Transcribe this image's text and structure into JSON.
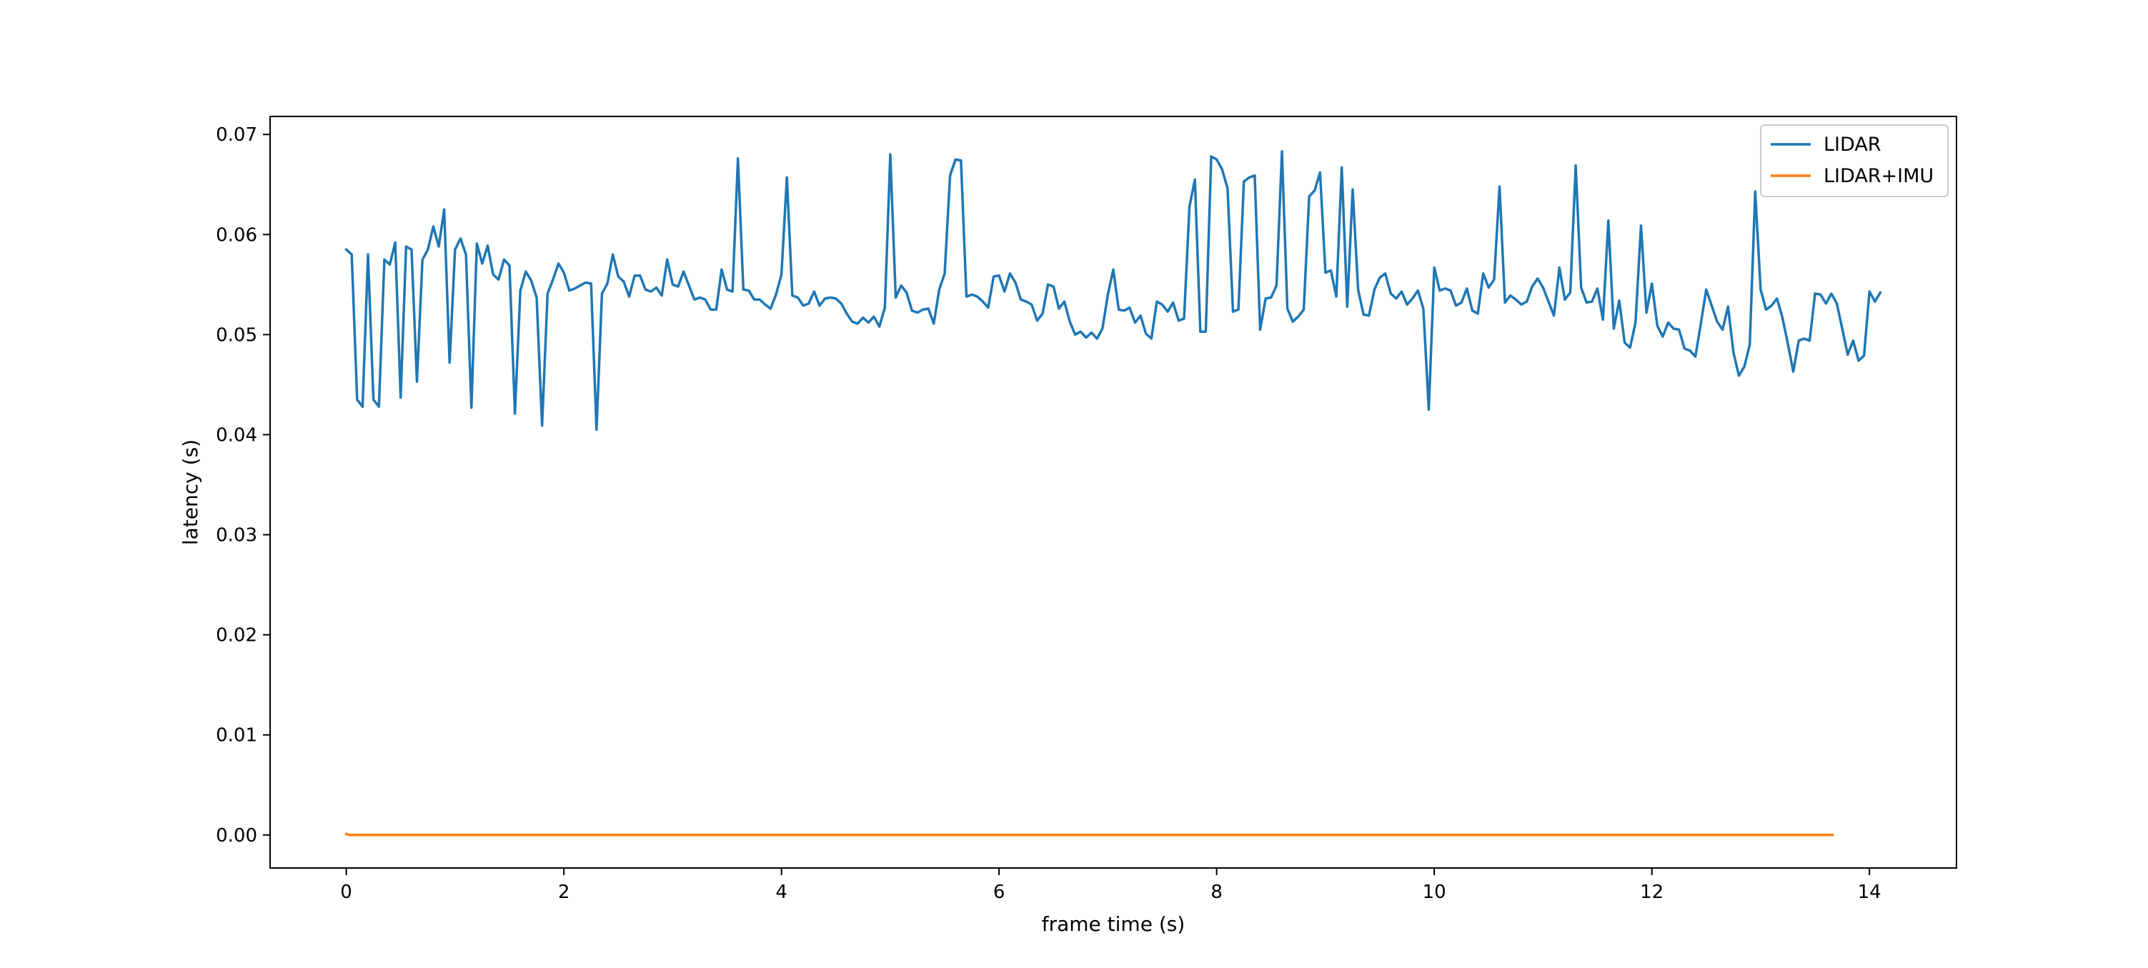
{
  "chart_data": {
    "type": "line",
    "title": "",
    "xlabel": "frame time (s)",
    "ylabel": "latency (s)",
    "xlim": [
      -0.7,
      14.8
    ],
    "ylim": [
      -0.0033,
      0.0718
    ],
    "xticks": [
      0,
      2,
      4,
      6,
      8,
      10,
      12,
      14
    ],
    "xtick_labels": [
      "0",
      "2",
      "4",
      "6",
      "8",
      "10",
      "12",
      "14"
    ],
    "yticks": [
      0.0,
      0.01,
      0.02,
      0.03,
      0.04,
      0.05,
      0.06,
      0.07
    ],
    "ytick_labels": [
      "0.00",
      "0.01",
      "0.02",
      "0.03",
      "0.04",
      "0.05",
      "0.06",
      "0.07"
    ],
    "grid": false,
    "legend_position": "top-right",
    "series": [
      {
        "name": "LIDAR",
        "color": "#1f77b4",
        "x": [
          0.0,
          0.05,
          0.1,
          0.15,
          0.2,
          0.25,
          0.3,
          0.35,
          0.4,
          0.45,
          0.5,
          0.55,
          0.6,
          0.65,
          0.7,
          0.75,
          0.8,
          0.85,
          0.9,
          0.95,
          1.0,
          1.05,
          1.1,
          1.15,
          1.2,
          1.25,
          1.3,
          1.35,
          1.4,
          1.45,
          1.5,
          1.55,
          1.6,
          1.65,
          1.7,
          1.75,
          1.8,
          1.85,
          1.9,
          1.95,
          2.0,
          2.05,
          2.1,
          2.15,
          2.2,
          2.25,
          2.3,
          2.35,
          2.4,
          2.45,
          2.5,
          2.55,
          2.6,
          2.65,
          2.7,
          2.75,
          2.8,
          2.85,
          2.9,
          2.95,
          3.0,
          3.05,
          3.1,
          3.15,
          3.2,
          3.25,
          3.3,
          3.35,
          3.4,
          3.45,
          3.5,
          3.55,
          3.6,
          3.65,
          3.7,
          3.75,
          3.8,
          3.85,
          3.9,
          3.95,
          4.0,
          4.05,
          4.1,
          4.15,
          4.2,
          4.25,
          4.3,
          4.35,
          4.4,
          4.45,
          4.5,
          4.55,
          4.6,
          4.65,
          4.7,
          4.75,
          4.8,
          4.85,
          4.9,
          4.95,
          5.0,
          5.05,
          5.1,
          5.15,
          5.2,
          5.25,
          5.3,
          5.35,
          5.4,
          5.45,
          5.5,
          5.55,
          5.6,
          5.65,
          5.7,
          5.75,
          5.8,
          5.85,
          5.9,
          5.95,
          6.0,
          6.05,
          6.1,
          6.15,
          6.2,
          6.25,
          6.3,
          6.35,
          6.4,
          6.45,
          6.5,
          6.55,
          6.6,
          6.65,
          6.7,
          6.75,
          6.8,
          6.85,
          6.9,
          6.95,
          7.0,
          7.05,
          7.1,
          7.15,
          7.2,
          7.25,
          7.3,
          7.35,
          7.4,
          7.45,
          7.5,
          7.55,
          7.6,
          7.65,
          7.7,
          7.75,
          7.8,
          7.85,
          7.9,
          7.95,
          8.0,
          8.05,
          8.1,
          8.15,
          8.2,
          8.25,
          8.3,
          8.35,
          8.4,
          8.45,
          8.5,
          8.55,
          8.6,
          8.65,
          8.7,
          8.75,
          8.8,
          8.85,
          8.9,
          8.95,
          9.0,
          9.05,
          9.1,
          9.15,
          9.2,
          9.25,
          9.3,
          9.35,
          9.4,
          9.45,
          9.5,
          9.55,
          9.6,
          9.65,
          9.7,
          9.75,
          9.8,
          9.85,
          9.9,
          9.95,
          10.0,
          10.05,
          10.1,
          10.15,
          10.2,
          10.25,
          10.3,
          10.35,
          10.4,
          10.45,
          10.5,
          10.55,
          10.6,
          10.65,
          10.7,
          10.75,
          10.8,
          10.85,
          10.9,
          10.95,
          11.0,
          11.05,
          11.1,
          11.15,
          11.2,
          11.25,
          11.3,
          11.35,
          11.4,
          11.45,
          11.5,
          11.55,
          11.6,
          11.65,
          11.7,
          11.75,
          11.8,
          11.85,
          11.9,
          11.95,
          12.0,
          12.05,
          12.1,
          12.15,
          12.2,
          12.25,
          12.3,
          12.35,
          12.4,
          12.45,
          12.5,
          12.55,
          12.6,
          12.65,
          12.7,
          12.75,
          12.8,
          12.85,
          12.9,
          12.95,
          13.0,
          13.05,
          13.1,
          13.15,
          13.2,
          13.25,
          13.3,
          13.35,
          13.4,
          13.45,
          13.5,
          13.55,
          13.6,
          13.65,
          13.7,
          13.75,
          13.8,
          13.85,
          13.9,
          13.95,
          14.0,
          14.05,
          14.1
        ],
        "y": [
          0.0585,
          0.058,
          0.0435,
          0.0428,
          0.058,
          0.0435,
          0.0428,
          0.0575,
          0.057,
          0.0592,
          0.0437,
          0.0588,
          0.0585,
          0.0453,
          0.0575,
          0.0585,
          0.0608,
          0.0588,
          0.0625,
          0.0472,
          0.0585,
          0.0596,
          0.058,
          0.0427,
          0.0591,
          0.0571,
          0.0589,
          0.056,
          0.0555,
          0.0575,
          0.0569,
          0.0421,
          0.0544,
          0.0563,
          0.0554,
          0.0537,
          0.0409,
          0.0541,
          0.0555,
          0.0571,
          0.0562,
          0.0544,
          0.0546,
          0.0549,
          0.0552,
          0.0551,
          0.0405,
          0.0541,
          0.0551,
          0.058,
          0.0558,
          0.0553,
          0.0538,
          0.0559,
          0.0559,
          0.0545,
          0.0543,
          0.0547,
          0.0539,
          0.0575,
          0.055,
          0.0548,
          0.0563,
          0.0549,
          0.0535,
          0.0537,
          0.0535,
          0.0525,
          0.0525,
          0.0565,
          0.0545,
          0.0543,
          0.0676,
          0.0545,
          0.0544,
          0.0535,
          0.0535,
          0.053,
          0.0526,
          0.054,
          0.056,
          0.0657,
          0.0539,
          0.0537,
          0.0529,
          0.0531,
          0.0543,
          0.0529,
          0.0536,
          0.0537,
          0.0536,
          0.0531,
          0.0521,
          0.0513,
          0.0511,
          0.0517,
          0.0512,
          0.0518,
          0.0508,
          0.0527,
          0.068,
          0.0537,
          0.0549,
          0.0542,
          0.0524,
          0.0522,
          0.0525,
          0.0526,
          0.0511,
          0.0545,
          0.0561,
          0.0659,
          0.0675,
          0.0674,
          0.0538,
          0.054,
          0.0538,
          0.0533,
          0.0527,
          0.0558,
          0.0559,
          0.0543,
          0.0561,
          0.0552,
          0.0535,
          0.0533,
          0.053,
          0.0514,
          0.0521,
          0.055,
          0.0548,
          0.0526,
          0.0533,
          0.0513,
          0.05,
          0.0503,
          0.0497,
          0.0502,
          0.0496,
          0.0506,
          0.054,
          0.0565,
          0.0525,
          0.0524,
          0.0527,
          0.0512,
          0.0519,
          0.0501,
          0.0496,
          0.0533,
          0.053,
          0.0523,
          0.0532,
          0.0514,
          0.0516,
          0.0628,
          0.0655,
          0.0503,
          0.0503,
          0.0678,
          0.0675,
          0.0665,
          0.0646,
          0.0523,
          0.0525,
          0.0653,
          0.0657,
          0.0659,
          0.0505,
          0.0536,
          0.0537,
          0.0549,
          0.0683,
          0.0526,
          0.0513,
          0.0518,
          0.0525,
          0.0638,
          0.0644,
          0.0662,
          0.0562,
          0.0564,
          0.0538,
          0.0667,
          0.0528,
          0.0645,
          0.0545,
          0.052,
          0.0519,
          0.0545,
          0.0557,
          0.0561,
          0.0541,
          0.0536,
          0.0543,
          0.053,
          0.0536,
          0.0544,
          0.0526,
          0.0425,
          0.0567,
          0.0544,
          0.0546,
          0.0544,
          0.0529,
          0.0532,
          0.0546,
          0.0524,
          0.0521,
          0.0561,
          0.0547,
          0.0555,
          0.0648,
          0.0532,
          0.0539,
          0.0535,
          0.053,
          0.0533,
          0.0548,
          0.0556,
          0.0547,
          0.0533,
          0.0519,
          0.0567,
          0.0535,
          0.0542,
          0.0669,
          0.0547,
          0.0532,
          0.0533,
          0.0546,
          0.0515,
          0.0614,
          0.0506,
          0.0534,
          0.0492,
          0.0487,
          0.0512,
          0.0609,
          0.0522,
          0.0551,
          0.0509,
          0.0498,
          0.0512,
          0.0506,
          0.0505,
          0.0486,
          0.0484,
          0.0478,
          0.0511,
          0.0545,
          0.0529,
          0.0513,
          0.0505,
          0.0528,
          0.0482,
          0.0459,
          0.0468,
          0.049,
          0.0643,
          0.0545,
          0.0525,
          0.0529,
          0.0536,
          0.0517,
          0.0491,
          0.0463,
          0.0494,
          0.0496,
          0.0494,
          0.0541,
          0.054,
          0.0531,
          0.0541,
          0.0531,
          0.0506,
          0.048,
          0.0494,
          0.0474,
          0.0479,
          0.0543,
          0.0533,
          0.0542
        ]
      },
      {
        "name": "LIDAR+IMU",
        "color": "#ff7f0e",
        "x": [
          0.0,
          0.03,
          13.66
        ],
        "y": [
          0.0001,
          0.0,
          0.0
        ]
      }
    ]
  }
}
